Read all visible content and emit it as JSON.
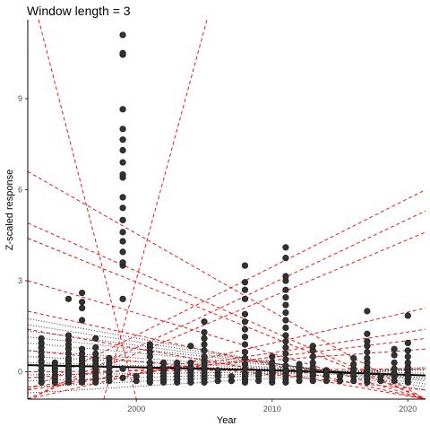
{
  "chart_data": {
    "type": "scatter",
    "title": "Window length = 3",
    "xlabel": "Year",
    "ylabel": "Z-scaled response",
    "xlim": [
      1992.0,
      2021.3
    ],
    "ylim": [
      -0.9,
      11.6
    ],
    "xticks": [
      2000,
      2010,
      2020
    ],
    "xtick_labels": [
      "2000",
      "2010",
      "2020"
    ],
    "yticks": [
      0,
      3,
      6,
      9
    ],
    "ytick_labels": [
      "0",
      "3",
      "6",
      "9"
    ],
    "grid": false,
    "axis_lines": "left-bottom",
    "point_color": "#333333",
    "columns": [
      {
        "year": 1993,
        "values": [
          -0.35,
          -0.2,
          -0.1,
          0.05,
          0.2,
          0.35,
          0.5,
          0.65,
          0.8,
          0.95,
          1.1
        ]
      },
      {
        "year": 1994,
        "values": [
          -0.35,
          -0.25,
          -0.15,
          0.0,
          0.1,
          0.2,
          0.3
        ]
      },
      {
        "year": 1995,
        "values": [
          -0.35,
          -0.25,
          -0.15,
          -0.05,
          0.05,
          0.15,
          0.25,
          0.35,
          0.45,
          0.6,
          0.75,
          0.9,
          1.05,
          1.2,
          2.4
        ]
      },
      {
        "year": 1996,
        "values": [
          -0.35,
          -0.25,
          -0.15,
          -0.05,
          0.05,
          0.15,
          0.25,
          0.35,
          0.45,
          0.6,
          0.75,
          1.7,
          2.1,
          2.3,
          2.6
        ]
      },
      {
        "year": 1997,
        "values": [
          -0.35,
          -0.25,
          -0.15,
          -0.05,
          0.05,
          0.15,
          0.25,
          0.35,
          0.45,
          0.6,
          0.8,
          1.1
        ]
      },
      {
        "year": 1998,
        "values": [
          -0.3,
          -0.15,
          0.0,
          0.15,
          0.3,
          0.45
        ]
      },
      {
        "year": 1999,
        "values": [
          -0.2,
          0.1,
          2.4,
          3.5,
          3.6,
          3.95,
          4.3,
          4.6,
          5.0,
          5.4,
          5.75,
          6.4,
          6.5,
          6.9,
          7.3,
          7.65,
          8.0,
          8.65,
          10.45,
          10.5,
          11.1
        ]
      },
      {
        "year": 2000,
        "values": [
          -0.3,
          -0.15
        ]
      },
      {
        "year": 2001,
        "values": [
          -0.35,
          -0.25,
          -0.15,
          -0.05,
          0.05,
          0.15,
          0.3,
          0.5,
          0.65,
          0.8,
          0.9
        ]
      },
      {
        "year": 2002,
        "values": [
          -0.35,
          -0.25,
          -0.15,
          -0.05,
          0.05,
          0.15,
          0.3
        ]
      },
      {
        "year": 2003,
        "values": [
          -0.35,
          -0.25,
          -0.15,
          -0.05,
          0.05,
          0.15,
          0.3
        ]
      },
      {
        "year": 2004,
        "values": [
          -0.35,
          -0.25,
          -0.15,
          -0.05,
          0.05,
          0.15,
          0.3,
          0.85
        ]
      },
      {
        "year": 2005,
        "values": [
          -0.35,
          -0.25,
          -0.15,
          -0.05,
          0.05,
          0.15,
          0.25,
          0.35,
          0.5,
          0.7,
          0.9,
          1.1,
          1.3,
          1.65
        ]
      },
      {
        "year": 2006,
        "values": [
          -0.3,
          -0.15,
          -0.05,
          0.05
        ]
      },
      {
        "year": 2007,
        "values": [
          -0.3,
          -0.15
        ]
      },
      {
        "year": 2008,
        "values": [
          -0.35,
          -0.25,
          -0.15,
          -0.05,
          0.1,
          0.25,
          0.45,
          0.65,
          0.9,
          1.15,
          1.4,
          1.65,
          1.9,
          2.4,
          2.7,
          2.95,
          3.5
        ]
      },
      {
        "year": 2009,
        "values": [
          -0.3,
          -0.15,
          -0.05
        ]
      },
      {
        "year": 2010,
        "values": [
          -0.35,
          -0.25,
          -0.15,
          -0.05,
          0.05,
          0.15,
          0.3,
          0.5
        ]
      },
      {
        "year": 2011,
        "values": [
          -0.35,
          -0.25,
          -0.15,
          -0.05,
          0.05,
          0.2,
          0.4,
          0.6,
          0.8,
          1.0,
          1.2,
          1.45,
          1.7,
          1.95,
          2.2,
          2.45,
          2.7,
          3.0,
          3.15,
          3.75,
          4.1
        ]
      },
      {
        "year": 2012,
        "values": [
          -0.3,
          -0.15,
          -0.05,
          0.05,
          0.15,
          0.25
        ]
      },
      {
        "year": 2013,
        "values": [
          -0.3,
          -0.15,
          -0.05,
          0.05,
          0.15,
          0.3,
          0.5,
          0.7,
          0.85
        ]
      },
      {
        "year": 2014,
        "values": [
          -0.3,
          -0.15,
          -0.05,
          0.05
        ]
      },
      {
        "year": 2015,
        "values": [
          -0.3,
          -0.15
        ]
      },
      {
        "year": 2016,
        "values": [
          -0.3,
          -0.15,
          -0.05,
          0.1,
          0.25,
          0.45
        ]
      },
      {
        "year": 2017,
        "values": [
          -0.35,
          -0.25,
          -0.15,
          -0.05,
          0.05,
          0.15,
          0.3,
          0.45,
          0.65,
          0.85,
          1.0,
          1.25,
          2.0
        ]
      },
      {
        "year": 2018,
        "values": [
          -0.3,
          -0.15
        ]
      },
      {
        "year": 2019,
        "values": [
          -0.3,
          -0.15,
          -0.05,
          0.1,
          0.3,
          0.55,
          0.75
        ]
      },
      {
        "year": 2020,
        "values": [
          -0.35,
          -0.25,
          -0.15,
          -0.05,
          0.05,
          0.15,
          0.3,
          0.5,
          0.7,
          0.95,
          1.85
        ]
      }
    ],
    "fit_lines": {
      "solid": {
        "color": "#000000",
        "points": [
          [
            1992.0,
            0.22
          ],
          [
            2000.0,
            0.15
          ],
          [
            2010.0,
            0.05
          ],
          [
            2021.3,
            -0.12
          ]
        ]
      },
      "dotted": {
        "color": "#333333",
        "lines": [
          [
            [
              1992.0,
              1.75
            ],
            [
              2021.3,
              -0.6
            ]
          ],
          [
            [
              1992.0,
              1.55
            ],
            [
              2021.3,
              -0.5
            ]
          ],
          [
            [
              1992.0,
              1.35
            ],
            [
              2021.3,
              -0.4
            ]
          ],
          [
            [
              1992.0,
              1.15
            ],
            [
              2021.3,
              -0.3
            ]
          ],
          [
            [
              1992.0,
              0.95
            ],
            [
              2021.3,
              -0.25
            ]
          ],
          [
            [
              1992.0,
              0.7
            ],
            [
              2021.3,
              -0.2
            ]
          ],
          [
            [
              1992.0,
              0.5
            ],
            [
              2021.3,
              -0.12
            ]
          ],
          [
            [
              1992.0,
              0.3
            ],
            [
              2021.3,
              -0.05
            ]
          ],
          [
            [
              1992.0,
              -0.1
            ],
            [
              2021.3,
              0.05
            ]
          ],
          [
            [
              1992.0,
              -0.3
            ],
            [
              2021.3,
              0.1
            ]
          ],
          [
            [
              1992.0,
              -0.5
            ],
            [
              2021.3,
              0.15
            ]
          ],
          [
            [
              1992.0,
              -0.7
            ],
            [
              2021.3,
              0.1
            ]
          ]
        ]
      },
      "dashed": {
        "color": "#e41a1c",
        "lines": [
          [
            [
              1992.8,
              11.6
            ],
            [
              2000.0,
              -0.9
            ]
          ],
          [
            [
              1997.6,
              -0.9
            ],
            [
              2005.2,
              11.6
            ]
          ],
          [
            [
              1992.0,
              6.6
            ],
            [
              2021.3,
              -0.9
            ]
          ],
          [
            [
              1992.0,
              4.9
            ],
            [
              2021.3,
              -0.9
            ]
          ],
          [
            [
              1992.0,
              4.4
            ],
            [
              2021.3,
              -0.9
            ]
          ],
          [
            [
              1992.0,
              3.0
            ],
            [
              2021.3,
              -0.9
            ]
          ],
          [
            [
              1992.0,
              2.0
            ],
            [
              2021.3,
              -0.9
            ]
          ],
          [
            [
              1992.0,
              1.4
            ],
            [
              2021.3,
              -0.9
            ]
          ],
          [
            [
              1992.0,
              0.7
            ],
            [
              2021.3,
              -0.6
            ]
          ],
          [
            [
              1992.0,
              -0.6
            ],
            [
              2021.3,
              6.0
            ]
          ],
          [
            [
              1992.0,
              -0.9
            ],
            [
              2021.3,
              5.3
            ]
          ],
          [
            [
              1992.0,
              -0.9
            ],
            [
              2021.3,
              4.6
            ]
          ],
          [
            [
              1992.0,
              -0.9
            ],
            [
              2021.3,
              2.1
            ]
          ],
          [
            [
              1992.0,
              -0.6
            ],
            [
              2021.3,
              1.4
            ]
          ],
          [
            [
              1992.0,
              -0.5
            ],
            [
              2021.3,
              1.1
            ]
          ],
          [
            [
              1992.0,
              -0.2
            ],
            [
              2021.3,
              0.75
            ]
          ],
          [
            [
              1992.0,
              0.0
            ],
            [
              2021.3,
              0.1
            ]
          ]
        ]
      }
    }
  }
}
